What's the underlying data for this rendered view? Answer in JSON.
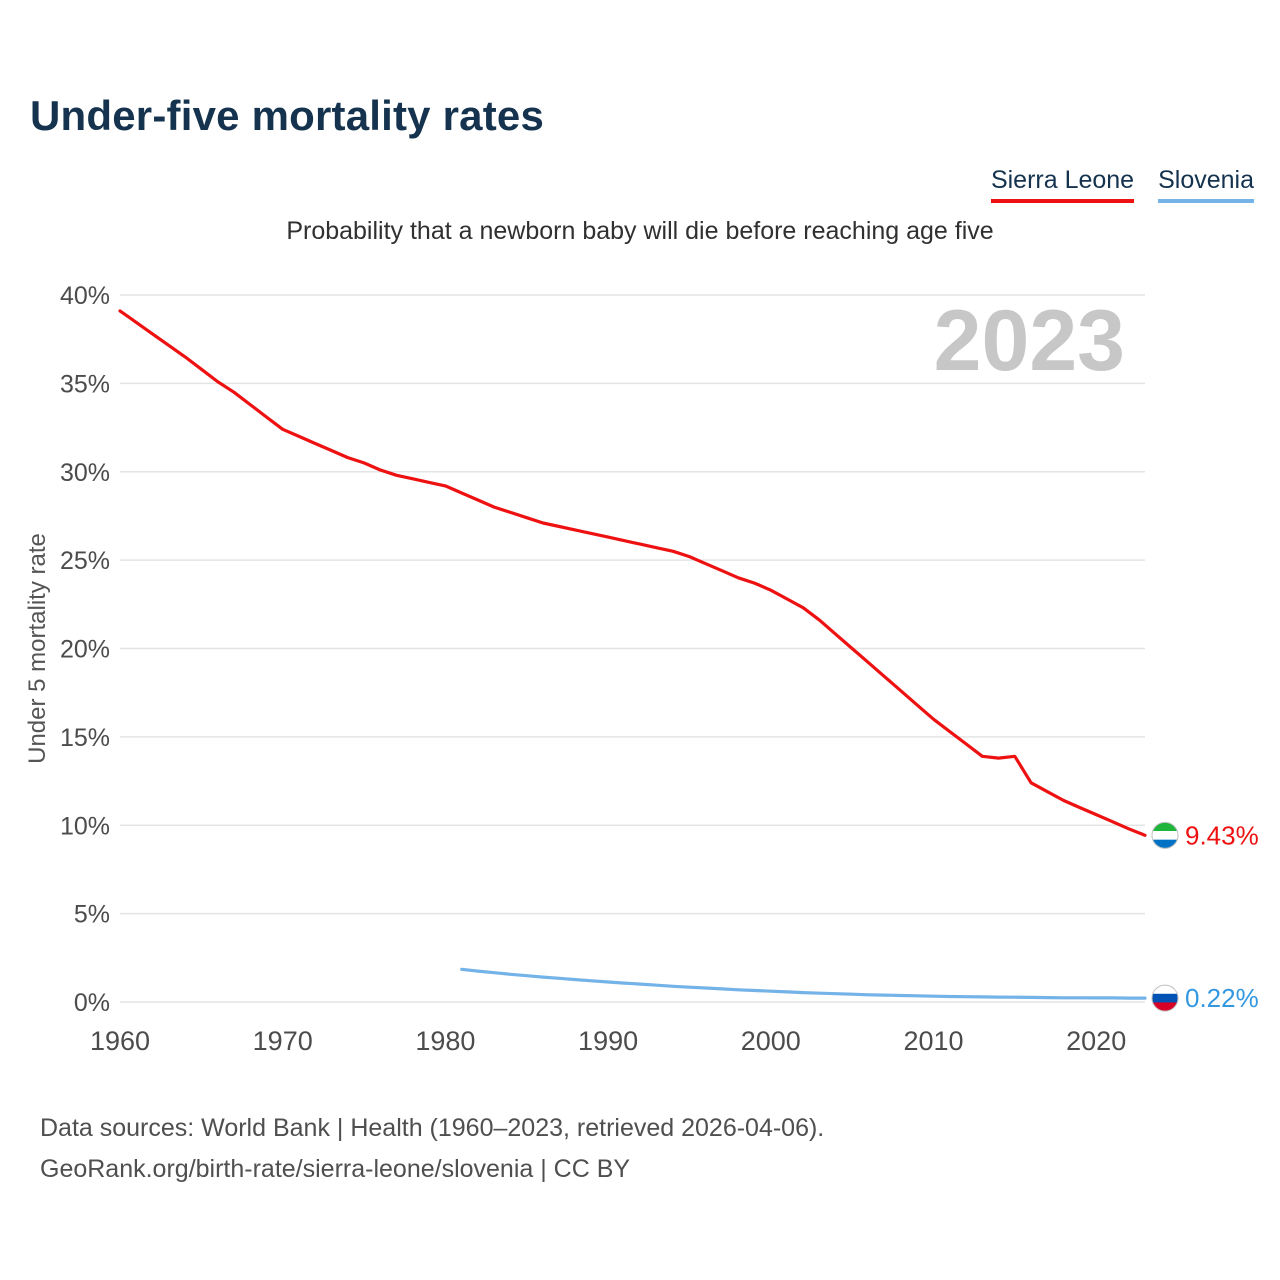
{
  "header": {
    "title": "Under-five mortality rates"
  },
  "legend": [
    {
      "label": "Sierra Leone",
      "color": "#ee1111"
    },
    {
      "label": "Slovenia",
      "color": "#74b3e8"
    }
  ],
  "watermark": "2023",
  "colors": {
    "title": "#15334e",
    "grid": "#e4e4e4",
    "axis_text": "#4c4c4c",
    "watermark": "#c7c7c7",
    "footer": "#4f4f4f"
  },
  "chart_data": {
    "type": "line",
    "title": "Under-five mortality rates",
    "subtitle": "Probability that a newborn baby will die before reaching age five",
    "xlabel": "",
    "ylabel": "Under 5 mortality rate",
    "xlim": [
      1960,
      2023
    ],
    "ylim": [
      0,
      40
    ],
    "grid": true,
    "legend_position": "top-right",
    "x_ticks": [
      1960,
      1970,
      1980,
      1990,
      2000,
      2010,
      2020
    ],
    "y_ticks": [
      0,
      5,
      10,
      15,
      20,
      25,
      30,
      35,
      40
    ],
    "y_tick_suffix": "%",
    "series": [
      {
        "name": "Sierra Leone",
        "color": "#ee1111",
        "label_color": "#ee1111",
        "end_label": "9.43%",
        "flag_icon": "sierra-leone-flag-icon",
        "flag_colors": [
          "#1EB53A",
          "#ffffff",
          "#0072C6"
        ],
        "start_year": 1960,
        "values": [
          39.1,
          38.45,
          37.8,
          37.15,
          36.5,
          35.8,
          35.1,
          34.5,
          33.8,
          33.1,
          32.4,
          32.0,
          31.6,
          31.2,
          30.8,
          30.5,
          30.1,
          29.8,
          29.6,
          29.4,
          29.2,
          28.8,
          28.4,
          28.0,
          27.7,
          27.4,
          27.1,
          26.9,
          26.7,
          26.5,
          26.3,
          26.1,
          25.9,
          25.7,
          25.5,
          25.2,
          24.8,
          24.4,
          24.0,
          23.7,
          23.3,
          22.8,
          22.3,
          21.6,
          20.8,
          20.0,
          19.2,
          18.4,
          17.6,
          16.8,
          16.0,
          15.3,
          14.6,
          13.9,
          13.8,
          13.9,
          12.4,
          11.9,
          11.4,
          11.0,
          10.6,
          10.2,
          9.8,
          9.43
        ]
      },
      {
        "name": "Slovenia",
        "color": "#74b3e8",
        "label_color": "#3498e0",
        "end_label": "0.22%",
        "flag_icon": "slovenia-flag-icon",
        "flag_colors": [
          "#ffffff",
          "#0052B4",
          "#D80027"
        ],
        "start_year": 1981,
        "values": [
          1.85,
          1.75,
          1.66,
          1.57,
          1.49,
          1.41,
          1.34,
          1.27,
          1.2,
          1.13,
          1.07,
          1.01,
          0.95,
          0.89,
          0.84,
          0.79,
          0.74,
          0.69,
          0.65,
          0.61,
          0.57,
          0.53,
          0.5,
          0.47,
          0.44,
          0.41,
          0.39,
          0.37,
          0.35,
          0.33,
          0.31,
          0.3,
          0.29,
          0.28,
          0.27,
          0.26,
          0.25,
          0.24,
          0.24,
          0.23,
          0.23,
          0.22,
          0.22
        ]
      }
    ]
  },
  "footer": {
    "line1": "Data sources: World Bank | Health (1960–2023, retrieved 2026-04-06).",
    "line2": "GeoRank.org/birth-rate/sierra-leone/slovenia | CC BY"
  }
}
